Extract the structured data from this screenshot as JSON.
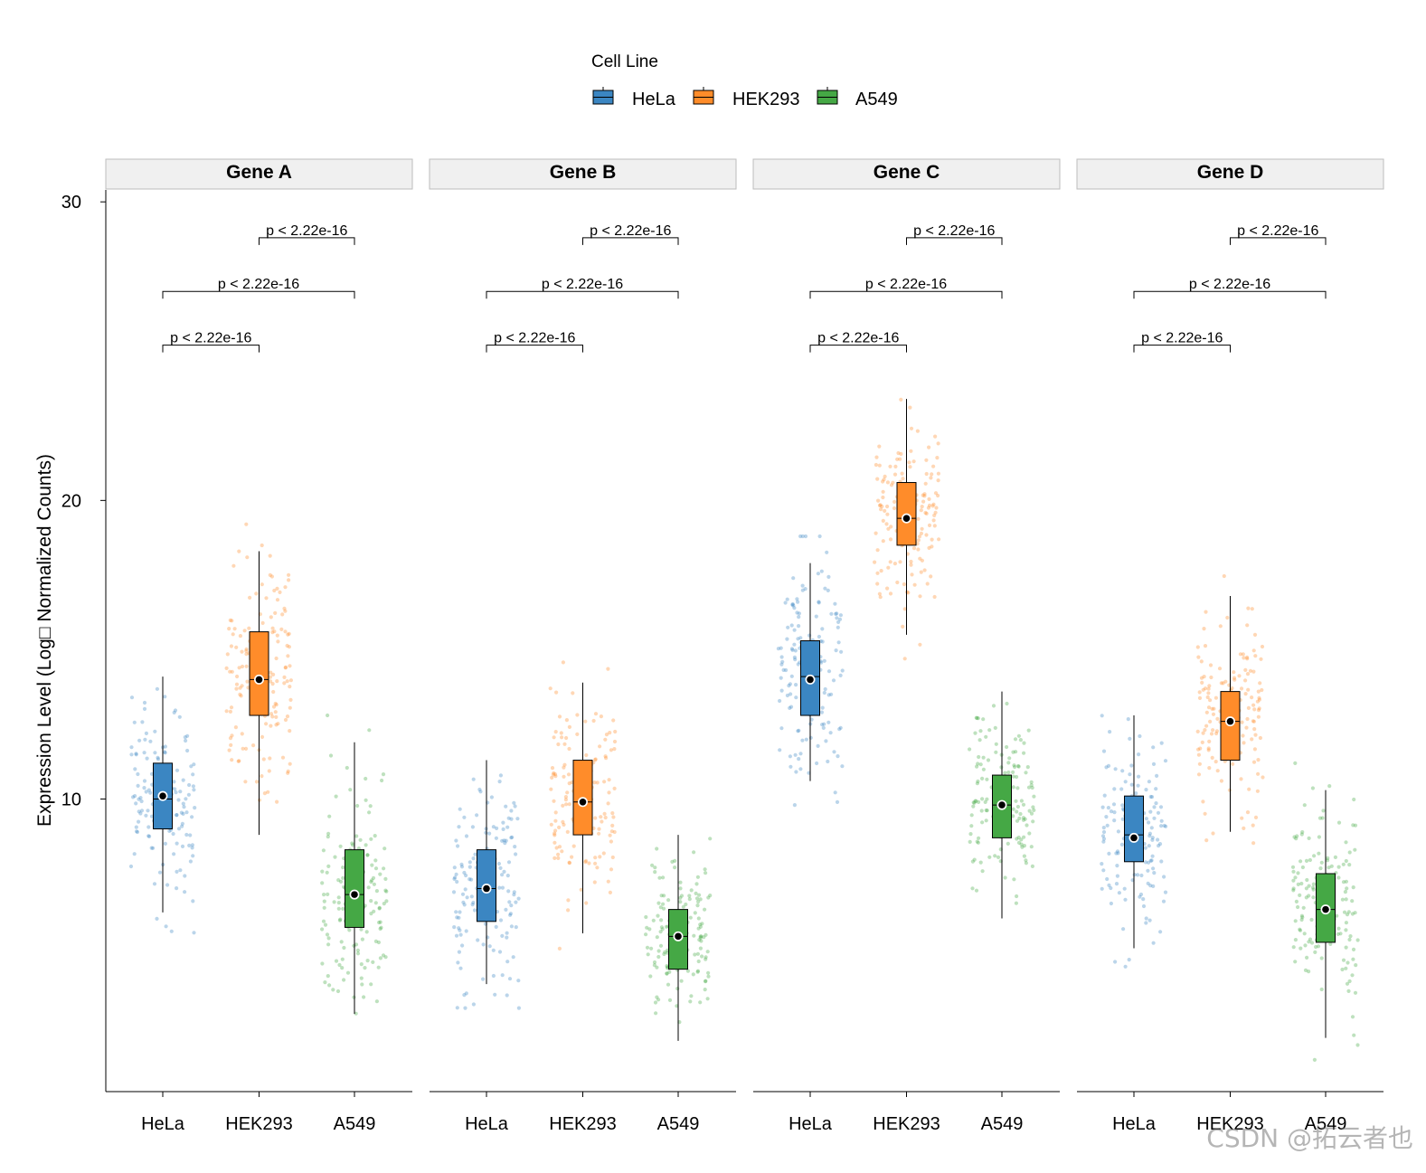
{
  "legend": {
    "title": "Cell Line",
    "items": [
      {
        "label": "HeLa",
        "color": "#3B86C2"
      },
      {
        "label": "HEK293",
        "color": "#FF8C2A"
      },
      {
        "label": "A549",
        "color": "#45A845"
      }
    ]
  },
  "watermark": "CSDN @拓云者也",
  "chart_data": {
    "type": "boxplot",
    "ylabel": "Expression Level (Log□ Normalized Counts)",
    "xlabel": "",
    "ylim": [
      0.2,
      30.4
    ],
    "yticks": [
      10,
      20,
      30
    ],
    "categories": [
      "HeLa",
      "HEK293",
      "A549"
    ],
    "colors": {
      "HeLa": "#3B86C2",
      "HEK293": "#FF8C2A",
      "A549": "#45A845"
    },
    "comparison_label": "p < 2.22e-16",
    "panels": [
      {
        "title": "Gene A",
        "boxes": [
          {
            "group": "HeLa",
            "q1": 9.0,
            "median": 10.0,
            "q3": 11.2,
            "mean": 10.1,
            "whisker_low": 6.2,
            "whisker_high": 14.1
          },
          {
            "group": "HEK293",
            "q1": 12.8,
            "median": 14.0,
            "q3": 15.6,
            "mean": 14.0,
            "whisker_low": 8.8,
            "whisker_high": 18.3
          },
          {
            "group": "A549",
            "q1": 5.7,
            "median": 6.8,
            "q3": 8.3,
            "mean": 6.8,
            "whisker_low": 2.8,
            "whisker_high": 11.9
          }
        ],
        "comparisons": [
          {
            "from": "HeLa",
            "to": "HEK293",
            "y": 25.2,
            "label": "p < 2.22e-16"
          },
          {
            "from": "HeLa",
            "to": "A549",
            "y": 27.0,
            "label": "p < 2.22e-16"
          },
          {
            "from": "HEK293",
            "to": "A549",
            "y": 28.8,
            "label": "p < 2.22e-16"
          }
        ]
      },
      {
        "title": "Gene B",
        "boxes": [
          {
            "group": "HeLa",
            "q1": 5.9,
            "median": 7.0,
            "q3": 8.3,
            "mean": 7.0,
            "whisker_low": 3.8,
            "whisker_high": 11.3
          },
          {
            "group": "HEK293",
            "q1": 8.8,
            "median": 9.9,
            "q3": 11.3,
            "mean": 9.9,
            "whisker_low": 5.5,
            "whisker_high": 13.9
          },
          {
            "group": "A549",
            "q1": 4.3,
            "median": 5.4,
            "q3": 6.3,
            "mean": 5.4,
            "whisker_low": 1.9,
            "whisker_high": 8.8
          }
        ],
        "comparisons": [
          {
            "from": "HeLa",
            "to": "HEK293",
            "y": 25.2,
            "label": "p < 2.22e-16"
          },
          {
            "from": "HeLa",
            "to": "A549",
            "y": 27.0,
            "label": "p < 2.22e-16"
          },
          {
            "from": "HEK293",
            "to": "A549",
            "y": 28.8,
            "label": "p < 2.22e-16"
          }
        ]
      },
      {
        "title": "Gene C",
        "boxes": [
          {
            "group": "HeLa",
            "q1": 12.8,
            "median": 14.1,
            "q3": 15.3,
            "mean": 14.0,
            "whisker_low": 10.6,
            "whisker_high": 17.9
          },
          {
            "group": "HEK293",
            "q1": 18.5,
            "median": 19.4,
            "q3": 20.6,
            "mean": 19.4,
            "whisker_low": 15.5,
            "whisker_high": 23.4
          },
          {
            "group": "A549",
            "q1": 8.7,
            "median": 9.8,
            "q3": 10.8,
            "mean": 9.8,
            "whisker_low": 6.0,
            "whisker_high": 13.6
          }
        ],
        "comparisons": [
          {
            "from": "HeLa",
            "to": "HEK293",
            "y": 25.2,
            "label": "p < 2.22e-16"
          },
          {
            "from": "HeLa",
            "to": "A549",
            "y": 27.0,
            "label": "p < 2.22e-16"
          },
          {
            "from": "HEK293",
            "to": "A549",
            "y": 28.8,
            "label": "p < 2.22e-16"
          }
        ]
      },
      {
        "title": "Gene D",
        "boxes": [
          {
            "group": "HeLa",
            "q1": 7.9,
            "median": 8.8,
            "q3": 10.1,
            "mean": 8.7,
            "whisker_low": 5.0,
            "whisker_high": 12.8
          },
          {
            "group": "HEK293",
            "q1": 11.3,
            "median": 12.6,
            "q3": 13.6,
            "mean": 12.6,
            "whisker_low": 8.9,
            "whisker_high": 16.8
          },
          {
            "group": "A549",
            "q1": 5.2,
            "median": 6.3,
            "q3": 7.5,
            "mean": 6.3,
            "whisker_low": 2.0,
            "whisker_high": 10.3
          }
        ],
        "comparisons": [
          {
            "from": "HeLa",
            "to": "HEK293",
            "y": 25.2,
            "label": "p < 2.22e-16"
          },
          {
            "from": "HeLa",
            "to": "A549",
            "y": 27.0,
            "label": "p < 2.22e-16"
          },
          {
            "from": "HEK293",
            "to": "A549",
            "y": 28.8,
            "label": "p < 2.22e-16"
          }
        ]
      }
    ]
  }
}
